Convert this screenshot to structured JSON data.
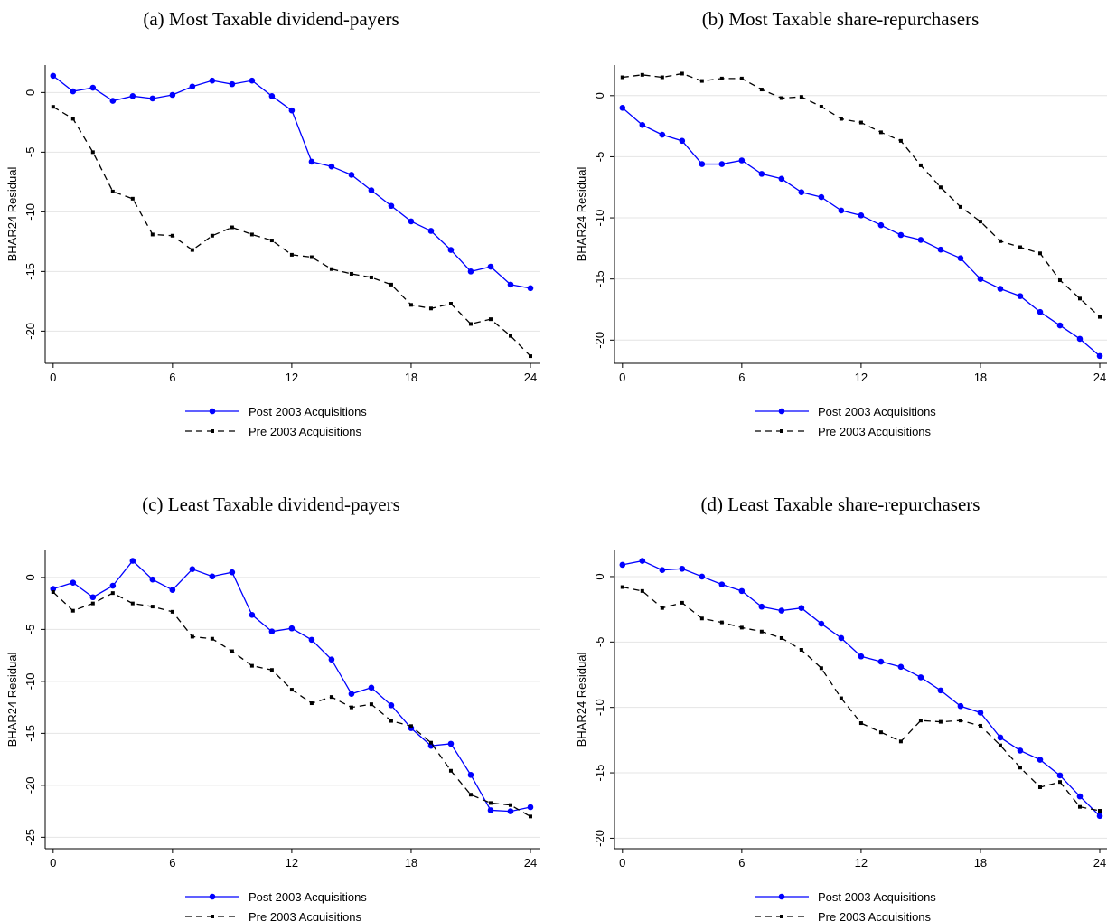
{
  "chart_data": [
    {
      "type": "line",
      "title": "(a) Most Taxable dividend-payers",
      "ylabel": "BHAR24 Residual",
      "x": [
        0,
        1,
        2,
        3,
        4,
        5,
        6,
        7,
        8,
        9,
        10,
        11,
        12,
        13,
        14,
        15,
        16,
        17,
        18,
        19,
        20,
        21,
        22,
        23,
        24
      ],
      "xlim": [
        -0.4,
        24.5
      ],
      "xticks": [
        0,
        6,
        12,
        18,
        24
      ],
      "ylim": [
        -22.7,
        2.3
      ],
      "yticks": [
        -20,
        -15,
        -10,
        -5,
        0
      ],
      "grid": true,
      "series": [
        {
          "name": "Post 2003 Acquisitions",
          "color": "#0000ff",
          "marker": "circle",
          "linestyle": "solid",
          "values": [
            1.4,
            0.1,
            0.4,
            -0.7,
            -0.3,
            -0.5,
            -0.2,
            0.5,
            1.0,
            0.7,
            1.0,
            -0.3,
            -1.5,
            -5.8,
            -6.2,
            -6.9,
            -8.2,
            -9.5,
            -10.8,
            -11.6,
            -13.2,
            -15.0,
            -14.6,
            -16.1,
            -16.4
          ]
        },
        {
          "name": "Pre 2003 Acquisitions",
          "color": "#000000",
          "marker": "square",
          "linestyle": "dashed",
          "values": [
            -1.2,
            -2.2,
            -5.0,
            -8.3,
            -8.9,
            -11.9,
            -12.0,
            -13.2,
            -12.0,
            -11.3,
            -11.9,
            -12.4,
            -13.6,
            -13.8,
            -14.8,
            -15.2,
            -15.5,
            -16.1,
            -17.8,
            -18.1,
            -17.7,
            -19.4,
            -19.0,
            -20.4,
            -22.1
          ]
        }
      ]
    },
    {
      "type": "line",
      "title": "(b) Most Taxable share-repurchasers",
      "ylabel": "BHAR24 Residual",
      "x": [
        0,
        1,
        2,
        3,
        4,
        5,
        6,
        7,
        8,
        9,
        10,
        11,
        12,
        13,
        14,
        15,
        16,
        17,
        18,
        19,
        20,
        21,
        22,
        23,
        24
      ],
      "xlim": [
        -0.4,
        24.5
      ],
      "xticks": [
        0,
        6,
        12,
        18,
        24
      ],
      "ylim": [
        -21.9,
        2.5
      ],
      "yticks": [
        -20,
        -15,
        -10,
        -5,
        0
      ],
      "grid": true,
      "series": [
        {
          "name": "Post 2003 Acquisitions",
          "color": "#0000ff",
          "marker": "circle",
          "linestyle": "solid",
          "values": [
            -1.0,
            -2.4,
            -3.2,
            -3.7,
            -5.6,
            -5.6,
            -5.3,
            -6.4,
            -6.8,
            -7.9,
            -8.3,
            -9.4,
            -9.8,
            -10.6,
            -11.4,
            -11.8,
            -12.6,
            -13.3,
            -15.0,
            -15.8,
            -16.4,
            -17.7,
            -18.8,
            -19.9,
            -21.3
          ]
        },
        {
          "name": "Pre 2003 Acquisitions",
          "color": "#000000",
          "marker": "square",
          "linestyle": "dashed",
          "values": [
            1.5,
            1.7,
            1.5,
            1.8,
            1.2,
            1.4,
            1.4,
            0.5,
            -0.2,
            -0.1,
            -0.9,
            -1.9,
            -2.2,
            -3.0,
            -3.7,
            -5.7,
            -7.5,
            -9.1,
            -10.3,
            -11.9,
            -12.4,
            -12.9,
            -15.1,
            -16.6,
            -18.1
          ]
        }
      ]
    },
    {
      "type": "line",
      "title": "(c) Least Taxable dividend-payers",
      "ylabel": "BHAR24 Residual",
      "x": [
        0,
        1,
        2,
        3,
        4,
        5,
        6,
        7,
        8,
        9,
        10,
        11,
        12,
        13,
        14,
        15,
        16,
        17,
        18,
        19,
        20,
        21,
        22,
        23,
        24
      ],
      "xlim": [
        -0.4,
        24.5
      ],
      "xticks": [
        0,
        6,
        12,
        18,
        24
      ],
      "ylim": [
        -26.1,
        2.6
      ],
      "yticks": [
        -25,
        -20,
        -15,
        -10,
        -5,
        0
      ],
      "grid": true,
      "series": [
        {
          "name": "Post 2003 Acquisitions",
          "color": "#0000ff",
          "marker": "circle",
          "linestyle": "solid",
          "values": [
            -1.1,
            -0.5,
            -1.9,
            -0.8,
            1.6,
            -0.2,
            -1.2,
            0.8,
            0.1,
            0.5,
            -3.6,
            -5.2,
            -4.9,
            -6.0,
            -7.9,
            -11.2,
            -10.6,
            -12.3,
            -14.5,
            -16.2,
            -16.0,
            -19.0,
            -22.4,
            -22.5,
            -22.1
          ]
        },
        {
          "name": "Pre 2003 Acquisitions",
          "color": "#000000",
          "marker": "square",
          "linestyle": "dashed",
          "values": [
            -1.4,
            -3.2,
            -2.5,
            -1.5,
            -2.5,
            -2.8,
            -3.3,
            -5.7,
            -5.9,
            -7.1,
            -8.5,
            -8.9,
            -10.8,
            -12.1,
            -11.5,
            -12.5,
            -12.2,
            -13.8,
            -14.3,
            -15.9,
            -18.6,
            -20.9,
            -21.7,
            -21.9,
            -23.0
          ]
        }
      ]
    },
    {
      "type": "line",
      "title": "(d) Least Taxable share-repurchasers",
      "ylabel": "BHAR24 Residual",
      "x": [
        0,
        1,
        2,
        3,
        4,
        5,
        6,
        7,
        8,
        9,
        10,
        11,
        12,
        13,
        14,
        15,
        16,
        17,
        18,
        19,
        20,
        21,
        22,
        23,
        24
      ],
      "xlim": [
        -0.4,
        24.5
      ],
      "xticks": [
        0,
        6,
        12,
        18,
        24
      ],
      "ylim": [
        -20.8,
        2.0
      ],
      "yticks": [
        -20,
        -15,
        -10,
        -5,
        0
      ],
      "grid": true,
      "series": [
        {
          "name": "Post 2003 Acquisitions",
          "color": "#0000ff",
          "marker": "circle",
          "linestyle": "solid",
          "values": [
            0.9,
            1.2,
            0.5,
            0.6,
            0.0,
            -0.6,
            -1.1,
            -2.3,
            -2.6,
            -2.4,
            -3.6,
            -4.7,
            -6.1,
            -6.5,
            -6.9,
            -7.7,
            -8.7,
            -9.9,
            -10.4,
            -12.3,
            -13.3,
            -14.0,
            -15.2,
            -16.8,
            -18.3
          ]
        },
        {
          "name": "Pre 2003 Acquisitions",
          "color": "#000000",
          "marker": "square",
          "linestyle": "dashed",
          "values": [
            -0.8,
            -1.1,
            -2.4,
            -2.0,
            -3.2,
            -3.5,
            -3.9,
            -4.2,
            -4.7,
            -5.6,
            -7.0,
            -9.3,
            -11.2,
            -11.9,
            -12.6,
            -11.0,
            -11.1,
            -11.0,
            -11.4,
            -12.9,
            -14.6,
            -16.1,
            -15.7,
            -17.6,
            -17.9
          ]
        }
      ]
    }
  ]
}
